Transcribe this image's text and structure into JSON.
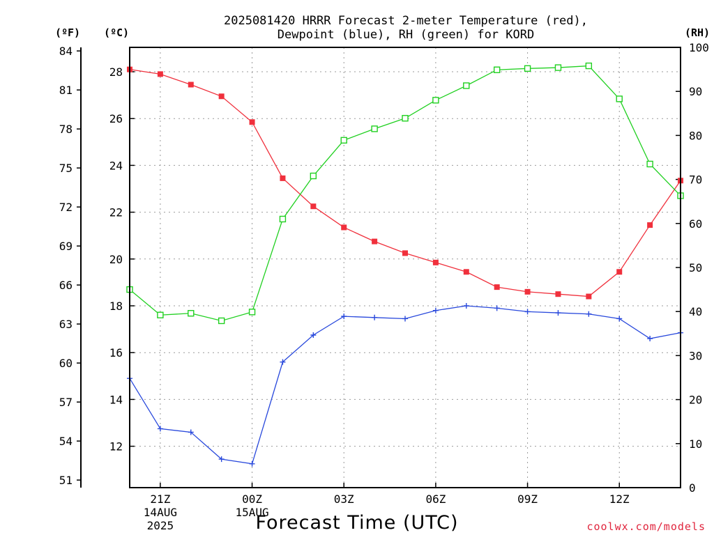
{
  "title_line1": "2025081420 HRRR Forecast 2-meter Temperature (red),",
  "title_line2": "Dewpoint (blue), RH (green) for KORD",
  "units": {
    "f": "(ºF)",
    "c": "(ºC)",
    "rh": "(RH)"
  },
  "xtitle": "Forecast Time (UTC)",
  "credit": "coolwx.com/models",
  "axes": {
    "f_ticks": [
      51,
      54,
      57,
      60,
      63,
      66,
      69,
      72,
      75,
      78,
      81,
      84
    ],
    "c_ticks": [
      12,
      14,
      16,
      18,
      20,
      22,
      24,
      26,
      28
    ],
    "rh_ticks": [
      0,
      10,
      20,
      30,
      40,
      50,
      60,
      70,
      80,
      90,
      100
    ],
    "x_ticks": [
      {
        "label": "21Z",
        "sub": [
          "14AUG",
          "2025"
        ]
      },
      {
        "label": "00Z",
        "sub": [
          "15AUG"
        ]
      },
      {
        "label": "03Z",
        "sub": []
      },
      {
        "label": "06Z",
        "sub": []
      },
      {
        "label": "09Z",
        "sub": []
      },
      {
        "label": "12Z",
        "sub": []
      }
    ]
  },
  "chart_data": {
    "type": "line",
    "xlabel": "Forecast Time (UTC)",
    "x": [
      "20Z",
      "21Z",
      "22Z",
      "23Z",
      "00Z",
      "01Z",
      "02Z",
      "03Z",
      "04Z",
      "05Z",
      "06Z",
      "07Z",
      "08Z",
      "09Z",
      "10Z",
      "11Z",
      "12Z",
      "13Z",
      "14Z"
    ],
    "ylim_c": [
      10.8,
      29.6
    ],
    "ylim_rh": [
      0,
      100
    ],
    "grid": true,
    "series": [
      {
        "name": "Temperature (red)",
        "axis": "c",
        "color": "#f0303c",
        "marker": "filled-square",
        "values": [
          28.1,
          27.9,
          27.45,
          26.95,
          25.85,
          23.45,
          22.25,
          21.35,
          20.75,
          20.25,
          19.85,
          19.45,
          18.8,
          18.6,
          18.5,
          18.4,
          19.45,
          21.45,
          23.35
        ]
      },
      {
        "name": "Dewpoint (blue)",
        "axis": "c",
        "color": "#2848dc",
        "marker": "plus",
        "values": [
          14.9,
          12.75,
          12.6,
          11.45,
          11.25,
          15.6,
          16.75,
          17.55,
          17.5,
          17.45,
          17.8,
          18.0,
          17.9,
          17.75,
          17.7,
          17.65,
          17.45,
          16.6,
          16.85
        ]
      },
      {
        "name": "RH (green)",
        "axis": "rh",
        "color": "#20d020",
        "marker": "open-square",
        "values": [
          45,
          39.2,
          39.6,
          37.9,
          39.9,
          61,
          70.8,
          78.9,
          81.5,
          83.9,
          88,
          91.3,
          94.9,
          95.2,
          95.4,
          95.8,
          88.3,
          73.5,
          66.3
        ]
      }
    ]
  }
}
